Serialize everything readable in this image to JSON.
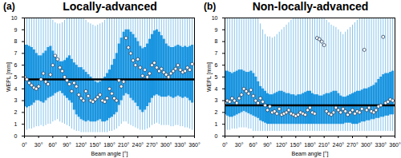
{
  "chart_data": [
    {
      "type": "box",
      "panel_label": "(a)",
      "title": "Locally-advanced",
      "x_label": "Beam angle [°]",
      "y_label": "WEPL [mm]",
      "color": "#1a95e0",
      "xlim": [
        0,
        360
      ],
      "ylim": [
        0,
        10
      ],
      "xticks": [
        {
          "value": 0,
          "label": "0°"
        },
        {
          "value": 30,
          "label": "30°"
        },
        {
          "value": 60,
          "label": "60°"
        },
        {
          "value": 90,
          "label": "90°"
        },
        {
          "value": 120,
          "label": "120°"
        },
        {
          "value": 150,
          "label": "150°"
        },
        {
          "value": 180,
          "label": "180°"
        },
        {
          "value": 210,
          "label": "210°"
        },
        {
          "value": 240,
          "label": "240°"
        },
        {
          "value": 270,
          "label": "270°"
        },
        {
          "value": 300,
          "label": "300°"
        },
        {
          "value": 330,
          "label": "330°"
        },
        {
          "value": 360,
          "label": "360°"
        }
      ],
      "yticks": [
        0,
        1,
        2,
        3,
        4,
        5,
        6,
        7,
        8,
        9,
        10
      ],
      "reference_line": 4.8,
      "x": [
        0,
        5,
        10,
        15,
        20,
        25,
        30,
        35,
        40,
        45,
        50,
        55,
        60,
        65,
        70,
        75,
        80,
        85,
        90,
        95,
        100,
        105,
        110,
        115,
        120,
        125,
        130,
        135,
        140,
        145,
        150,
        155,
        160,
        165,
        170,
        175,
        180,
        185,
        190,
        195,
        200,
        205,
        210,
        215,
        220,
        225,
        230,
        235,
        240,
        245,
        250,
        255,
        260,
        265,
        270,
        275,
        280,
        285,
        290,
        295,
        300,
        305,
        310,
        315,
        320,
        325,
        330,
        335,
        340,
        345,
        350,
        355
      ],
      "median": [
        5.0,
        4.8,
        4.5,
        4.3,
        4.1,
        4.0,
        4.2,
        4.8,
        5.3,
        4.6,
        4.4,
        5.2,
        6.0,
        6.8,
        6.5,
        5.8,
        5.5,
        5.0,
        4.7,
        4.4,
        3.8,
        4.5,
        4.2,
        3.5,
        3.2,
        3.0,
        3.8,
        3.4,
        3.0,
        2.9,
        3.1,
        3.3,
        3.5,
        3.0,
        2.9,
        3.2,
        4.0,
        3.6,
        3.2,
        3.0,
        4.7,
        4.2,
        4.6,
        8.3,
        7.5,
        7.0,
        6.4,
        6.0,
        6.5,
        5.8,
        5.1,
        5.6,
        5.0,
        5.3,
        6.0,
        6.2,
        5.8,
        5.5,
        5.7,
        5.4,
        5.2,
        5.0,
        5.3,
        5.5,
        5.7,
        6.0,
        5.6,
        5.4,
        5.5,
        5.8,
        5.6,
        6.1
      ],
      "q1": [
        2.5,
        2.4,
        2.5,
        2.6,
        2.8,
        3.0,
        3.0,
        2.9,
        2.8,
        3.0,
        3.2,
        3.3,
        3.4,
        3.6,
        3.7,
        3.8,
        3.6,
        3.4,
        3.2,
        3.0,
        2.8,
        2.2,
        1.8,
        1.6,
        1.4,
        1.3,
        1.2,
        1.3,
        1.2,
        1.2,
        1.2,
        1.3,
        1.4,
        1.2,
        1.2,
        1.3,
        1.5,
        1.6,
        1.8,
        2.0,
        2.6,
        3.0,
        3.4,
        3.6,
        3.5,
        3.2,
        3.0,
        2.8,
        2.5,
        2.2,
        2.0,
        2.2,
        2.5,
        2.8,
        3.2,
        3.4,
        3.5,
        3.4,
        3.3,
        3.3,
        3.3,
        3.4,
        3.3,
        3.2,
        3.3,
        3.4,
        3.3,
        3.2,
        3.3,
        3.2,
        3.0,
        2.8
      ],
      "q3": [
        7.7,
        7.7,
        7.6,
        7.5,
        7.3,
        7.0,
        6.8,
        6.8,
        7.0,
        7.2,
        7.5,
        7.6,
        7.2,
        6.8,
        6.5,
        6.3,
        6.3,
        6.4,
        6.6,
        6.8,
        6.5,
        6.2,
        6.0,
        5.8,
        5.8,
        5.6,
        5.4,
        5.2,
        5.0,
        4.8,
        4.6,
        4.5,
        4.6,
        4.8,
        5.0,
        5.3,
        5.6,
        6.0,
        6.5,
        7.0,
        7.8,
        8.3,
        8.8,
        9.0,
        9.0,
        8.8,
        8.6,
        8.3,
        8.0,
        7.6,
        7.4,
        7.5,
        7.8,
        8.2,
        8.6,
        8.9,
        9.0,
        8.8,
        8.5,
        8.2,
        7.8,
        7.6,
        7.5,
        7.5,
        7.6,
        7.7,
        7.6,
        7.5,
        7.6,
        7.5,
        7.6,
        7.7
      ],
      "whisker_low": [
        0.5,
        0.5,
        0.6,
        0.6,
        0.7,
        0.8,
        0.8,
        0.9,
        0.8,
        0.9,
        1.0,
        1.0,
        1.2,
        1.3,
        1.4,
        1.2,
        1.1,
        1.0,
        0.9,
        0.8,
        0.6,
        0.5,
        0.4,
        0.4,
        0.3,
        0.3,
        0.3,
        0.3,
        0.3,
        0.3,
        0.3,
        0.3,
        0.3,
        0.3,
        0.3,
        0.3,
        0.4,
        0.4,
        0.5,
        0.6,
        0.8,
        1.0,
        1.2,
        1.2,
        1.0,
        0.9,
        0.8,
        0.7,
        0.6,
        0.5,
        0.5,
        0.5,
        0.6,
        0.7,
        0.9,
        1.0,
        1.1,
        1.0,
        0.9,
        0.9,
        0.9,
        0.9,
        0.8,
        0.8,
        0.9,
        0.9,
        0.8,
        0.8,
        0.7,
        0.7,
        0.6,
        0.5
      ],
      "whisker_high": [
        10,
        10,
        10,
        10,
        10,
        10,
        10,
        10,
        10,
        10,
        10,
        10,
        9.8,
        9.6,
        9.5,
        9.5,
        9.6,
        9.8,
        10,
        10,
        10,
        10,
        10,
        10,
        10,
        10,
        9.8,
        9.6,
        9.5,
        9.4,
        9.3,
        9.4,
        9.5,
        9.6,
        9.8,
        10,
        10,
        10,
        10,
        10,
        10,
        10,
        10,
        10,
        10,
        10,
        10,
        10,
        10,
        10,
        10,
        10,
        10,
        10,
        10,
        10,
        10,
        10,
        10,
        10,
        10,
        10,
        10,
        10,
        10,
        10,
        10,
        10,
        10,
        10,
        10,
        10
      ]
    },
    {
      "type": "box",
      "panel_label": "(b)",
      "title": "Non-locally-advanced",
      "x_label": "Beam angle [°]",
      "y_label": "WEPL [mm]",
      "color": "#1a95e0",
      "xlim": [
        0,
        360
      ],
      "ylim": [
        0,
        10
      ],
      "xticks": [
        {
          "value": 0,
          "label": "0°"
        },
        {
          "value": 30,
          "label": "30°"
        },
        {
          "value": 60,
          "label": "60°"
        },
        {
          "value": 90,
          "label": "90°"
        },
        {
          "value": 120,
          "label": "120°"
        },
        {
          "value": 150,
          "label": "150°"
        },
        {
          "value": 180,
          "label": "180°"
        },
        {
          "value": 210,
          "label": "210°"
        },
        {
          "value": 240,
          "label": "240°"
        },
        {
          "value": 270,
          "label": "270°"
        },
        {
          "value": 300,
          "label": "300°"
        },
        {
          "value": 330,
          "label": "330°"
        },
        {
          "value": 360,
          "label": "360°"
        }
      ],
      "yticks": [
        0,
        1,
        2,
        3,
        4,
        5,
        6,
        7,
        8,
        9,
        10
      ],
      "reference_line": 2.6,
      "x": [
        0,
        5,
        10,
        15,
        20,
        25,
        30,
        35,
        40,
        45,
        50,
        55,
        60,
        65,
        70,
        75,
        80,
        85,
        90,
        95,
        100,
        105,
        110,
        115,
        120,
        125,
        130,
        135,
        140,
        145,
        150,
        155,
        160,
        165,
        170,
        175,
        180,
        185,
        190,
        195,
        200,
        205,
        210,
        215,
        220,
        225,
        230,
        235,
        240,
        245,
        250,
        255,
        260,
        265,
        270,
        275,
        280,
        285,
        290,
        295,
        300,
        305,
        310,
        315,
        320,
        325,
        330,
        335,
        340,
        345,
        350,
        355
      ],
      "median": [
        2.8,
        3.0,
        2.9,
        3.2,
        3.0,
        2.8,
        3.2,
        3.5,
        4.0,
        3.8,
        3.6,
        3.9,
        3.4,
        3.0,
        2.8,
        3.2,
        2.9,
        2.6,
        2.2,
        2.5,
        2.0,
        2.1,
        1.9,
        2.3,
        1.8,
        1.9,
        2.0,
        2.2,
        1.9,
        1.8,
        1.7,
        1.8,
        2.0,
        1.9,
        1.8,
        2.2,
        2.4,
        2.0,
        1.9,
        8.3,
        8.2,
        8.0,
        7.7,
        2.1,
        1.9,
        1.8,
        2.0,
        2.4,
        2.2,
        2.0,
        2.3,
        2.1,
        1.8,
        2.0,
        2.2,
        1.9,
        2.1,
        2.0,
        2.3,
        7.3,
        2.2,
        2.4,
        2.1,
        2.0,
        2.2,
        2.5,
        2.6,
        8.4,
        2.8,
        2.9,
        3.1,
        3.0
      ],
      "q1": [
        1.8,
        1.7,
        1.6,
        1.6,
        1.7,
        1.8,
        1.9,
        2.0,
        2.1,
        2.0,
        1.9,
        1.8,
        1.7,
        1.6,
        1.5,
        1.3,
        1.2,
        1.1,
        1.0,
        1.0,
        1.0,
        1.0,
        1.0,
        1.0,
        1.0,
        1.0,
        1.0,
        1.0,
        1.0,
        1.0,
        1.0,
        1.0,
        1.0,
        1.0,
        1.0,
        1.0,
        1.0,
        1.0,
        1.0,
        1.0,
        1.0,
        1.0,
        1.0,
        1.0,
        1.0,
        1.0,
        1.0,
        1.0,
        1.0,
        1.0,
        1.0,
        1.1,
        1.1,
        1.1,
        1.0,
        1.0,
        1.0,
        1.1,
        1.2,
        1.2,
        1.3,
        1.3,
        1.4,
        1.4,
        1.5,
        1.5,
        1.6,
        1.6,
        1.7,
        1.7,
        1.8,
        1.8
      ],
      "q3": [
        5.5,
        5.5,
        5.4,
        5.3,
        5.4,
        5.5,
        5.6,
        5.6,
        5.5,
        5.4,
        5.4,
        5.5,
        5.3,
        5.0,
        4.6,
        4.2,
        4.0,
        3.8,
        3.6,
        3.5,
        3.5,
        3.6,
        3.7,
        3.8,
        3.8,
        3.7,
        3.6,
        3.6,
        3.5,
        3.5,
        3.4,
        3.5,
        3.5,
        3.6,
        3.7,
        3.8,
        3.8,
        3.6,
        3.5,
        3.5,
        3.4,
        3.4,
        3.5,
        3.6,
        3.6,
        3.7,
        3.8,
        3.8,
        3.6,
        3.4,
        3.3,
        3.3,
        3.4,
        3.5,
        3.6,
        3.7,
        3.8,
        3.8,
        3.9,
        4.0,
        4.0,
        4.1,
        4.2,
        4.3,
        4.5,
        4.8,
        5.0,
        5.2,
        5.3,
        5.3,
        5.4,
        5.5
      ],
      "whisker_low": [
        0.5,
        0.5,
        0.5,
        0.6,
        0.6,
        0.6,
        0.7,
        0.7,
        0.7,
        0.7,
        0.6,
        0.6,
        0.4,
        0.4,
        0.4,
        0.4,
        0.4,
        0.4,
        0.4,
        0.4,
        0.4,
        0.4,
        0.4,
        0.4,
        0.4,
        0.4,
        0.4,
        0.4,
        0.4,
        0.4,
        0.4,
        0.4,
        0.4,
        0.4,
        0.4,
        0.4,
        0.4,
        0.4,
        0.4,
        0.4,
        0.4,
        0.4,
        0.4,
        0.4,
        0.4,
        0.4,
        0.4,
        0.4,
        0.4,
        0.4,
        0.4,
        0.4,
        0.4,
        0.4,
        0.4,
        0.4,
        0.4,
        0.4,
        0.4,
        0.4,
        0.4,
        0.4,
        0.4,
        0.4,
        0.4,
        0.4,
        0.4,
        0.4,
        0.4,
        0.4,
        0.4,
        0.4
      ],
      "whisker_high": [
        10,
        10,
        10,
        10,
        10,
        10,
        10,
        10,
        10,
        10,
        10,
        10,
        10,
        10,
        10,
        9.5,
        9.0,
        8.6,
        8.4,
        8.4,
        8.3,
        8.4,
        8.6,
        8.8,
        9.0,
        9.2,
        9.4,
        9.6,
        9.8,
        10,
        10,
        10,
        10,
        10,
        10,
        10,
        10,
        10,
        10,
        10,
        10,
        10,
        10,
        9.8,
        9.6,
        9.4,
        9.3,
        9.2,
        9.0,
        8.8,
        8.6,
        8.8,
        9.0,
        9.2,
        9.4,
        9.6,
        9.8,
        10,
        10,
        10,
        10,
        10,
        10,
        10,
        10,
        10,
        10,
        10,
        10,
        10,
        10,
        10
      ]
    }
  ]
}
